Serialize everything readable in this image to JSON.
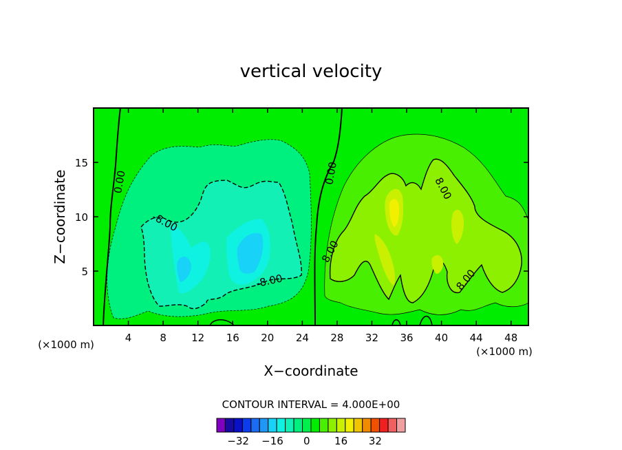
{
  "chart_data": {
    "type": "heatmap",
    "title": "vertical velocity",
    "xlabel": "X−coordinate",
    "ylabel": "Z−coordinate",
    "x_unit": "(×1000 m)",
    "y_unit": "(×1000 m)",
    "xlim": [
      0,
      50
    ],
    "ylim": [
      0,
      20
    ],
    "x_ticks": [
      4,
      8,
      12,
      16,
      20,
      24,
      28,
      32,
      36,
      40,
      44,
      48
    ],
    "y_ticks": [
      5,
      10,
      15
    ],
    "contour_interval": "CONTOUR INTERVAL = 4.000E+00",
    "contour_labels": [
      {
        "text": "0.00",
        "x": 3.0,
        "y": 13.2,
        "angle": -80
      },
      {
        "text": "0.00",
        "x": 27.3,
        "y": 14.0,
        "angle": -80
      },
      {
        "text": "-8.00",
        "x": 8.2,
        "y": 9.5,
        "angle": 28
      },
      {
        "text": "-8.00",
        "x": 20.2,
        "y": 4.1,
        "angle": -12
      },
      {
        "text": "8.00",
        "x": 27.2,
        "y": 6.8,
        "angle": -62
      },
      {
        "text": "8.00",
        "x": 40.2,
        "y": 12.6,
        "angle": 62
      },
      {
        "text": "8.00",
        "x": 42.8,
        "y": 4.2,
        "angle": -50
      }
    ],
    "colorbar": {
      "min": -40,
      "max": 40,
      "step": 4,
      "ticks": [
        -32,
        -16,
        0,
        16,
        32
      ],
      "tick_labels": [
        "−32",
        "−16",
        "0",
        "16",
        "32"
      ],
      "colors": [
        "#7f00bf",
        "#1a0aa4",
        "#0a10c8",
        "#0b3cee",
        "#1b6cf2",
        "#1f98f5",
        "#18d2f8",
        "#0ff2e2",
        "#12f0b5",
        "#00f080",
        "#00f04b",
        "#00ed00",
        "#49ef00",
        "#8df000",
        "#c8f000",
        "#f0f000",
        "#f0c400",
        "#f08a00",
        "#f05000",
        "#f02020",
        "#f06060",
        "#f0a0a0"
      ]
    }
  }
}
